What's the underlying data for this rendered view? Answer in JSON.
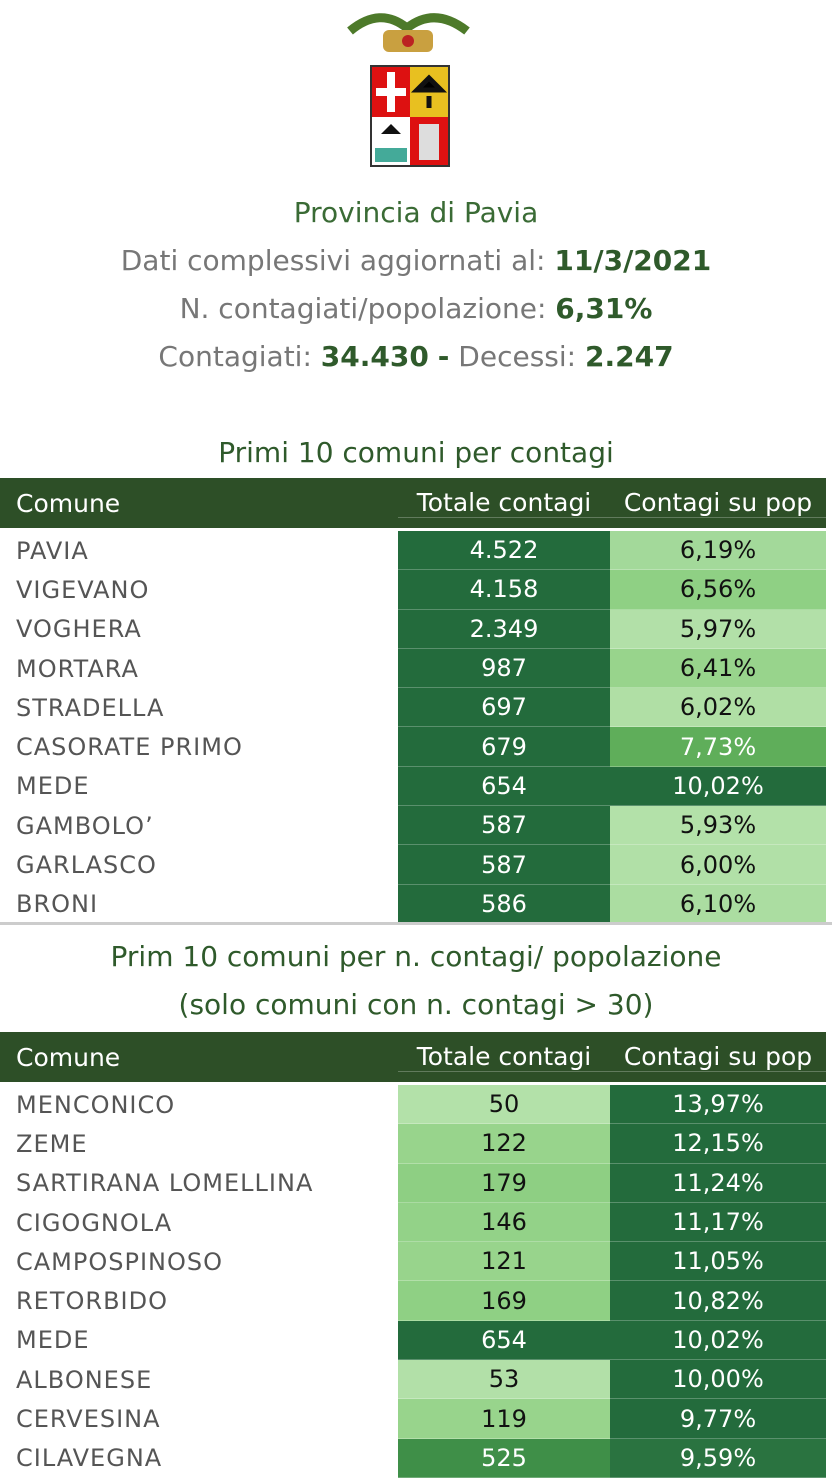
{
  "header": {
    "title": "Provincia di Pavia",
    "lines": [
      [
        {
          "text": "Dati complessivi aggiornati al:",
          "strong": false
        },
        {
          "text": "11/3/2021",
          "strong": true
        }
      ],
      [
        {
          "text": "N. contagiati/popolazione:",
          "strong": false
        },
        {
          "text": "6,31%",
          "strong": true
        }
      ],
      [
        {
          "text": "Contagiati:",
          "strong": false
        },
        {
          "text": "34.430",
          "strong": true
        },
        {
          "text": "-",
          "strong": true
        },
        {
          "text": "Decessi:",
          "strong": false
        },
        {
          "text": "2.247",
          "strong": true
        }
      ]
    ]
  },
  "tables": [
    {
      "title": [
        "Primi 10 comuni per contagi"
      ],
      "columns": [
        "Comune",
        "Totale contagi",
        "Contagi su pop"
      ],
      "rows": [
        [
          "PAVIA",
          "4.522",
          "6,19%"
        ],
        [
          "VIGEVANO",
          "4.158",
          "6,56%"
        ],
        [
          "VOGHERA",
          "2.349",
          "5,97%"
        ],
        [
          "MORTARA",
          "987",
          "6,41%"
        ],
        [
          "STRADELLA",
          "697",
          "6,02%"
        ],
        [
          "CASORATE PRIMO",
          "679",
          "7,73%"
        ],
        [
          "MEDE",
          "654",
          "10,02%"
        ],
        [
          "GAMBOLO’",
          "587",
          "5,93%"
        ],
        [
          "GARLASCO",
          "587",
          "6,00%"
        ],
        [
          "BRONI",
          "586",
          "6,10%"
        ]
      ],
      "colors": [
        [
          "#236b3c",
          "#a3d99a"
        ],
        [
          "#236b3c",
          "#8fd084"
        ],
        [
          "#236b3c",
          "#b2e0a8"
        ],
        [
          "#236b3c",
          "#98d48c"
        ],
        [
          "#236b3c",
          "#b0dfa5"
        ],
        [
          "#236b3c",
          "#5fae5a"
        ],
        [
          "#236b3c",
          "#236b3c"
        ],
        [
          "#236b3c",
          "#b3e1a9"
        ],
        [
          "#236b3c",
          "#b1e0a7"
        ],
        [
          "#236b3c",
          "#abdda1"
        ]
      ]
    },
    {
      "title": [
        "Prim 10 comuni per n. contagi/ popolazione",
        "(solo comuni con n. contagi > 30)"
      ],
      "columns": [
        "Comune",
        "Totale contagi",
        "Contagi su pop"
      ],
      "rows": [
        [
          "MENCONICO",
          "50",
          "13,97%"
        ],
        [
          "ZEME",
          "122",
          "12,15%"
        ],
        [
          "SARTIRANA LOMELLINA",
          "179",
          "11,24%"
        ],
        [
          "CIGOGNOLA",
          "146",
          "11,17%"
        ],
        [
          "CAMPOSPINOSO",
          "121",
          "11,05%"
        ],
        [
          "RETORBIDO",
          "169",
          "10,82%"
        ],
        [
          "MEDE",
          "654",
          "10,02%"
        ],
        [
          "ALBONESE",
          "53",
          "10,00%"
        ],
        [
          "CERVESINA",
          "119",
          "9,77%"
        ],
        [
          "CILAVEGNA",
          "525",
          "9,59%"
        ]
      ],
      "colors": [
        [
          "#b3e1a9",
          "#236b3c"
        ],
        [
          "#98d48c",
          "#236b3c"
        ],
        [
          "#8ecf83",
          "#236b3c"
        ],
        [
          "#93d288",
          "#236b3c"
        ],
        [
          "#98d48c",
          "#236b3c"
        ],
        [
          "#8fd084",
          "#236b3c"
        ],
        [
          "#236b3c",
          "#236b3c"
        ],
        [
          "#b2e0a8",
          "#236b3c"
        ],
        [
          "#98d48c",
          "#236b3c"
        ],
        [
          "#3f8f48",
          "#2a7340"
        ]
      ]
    }
  ]
}
